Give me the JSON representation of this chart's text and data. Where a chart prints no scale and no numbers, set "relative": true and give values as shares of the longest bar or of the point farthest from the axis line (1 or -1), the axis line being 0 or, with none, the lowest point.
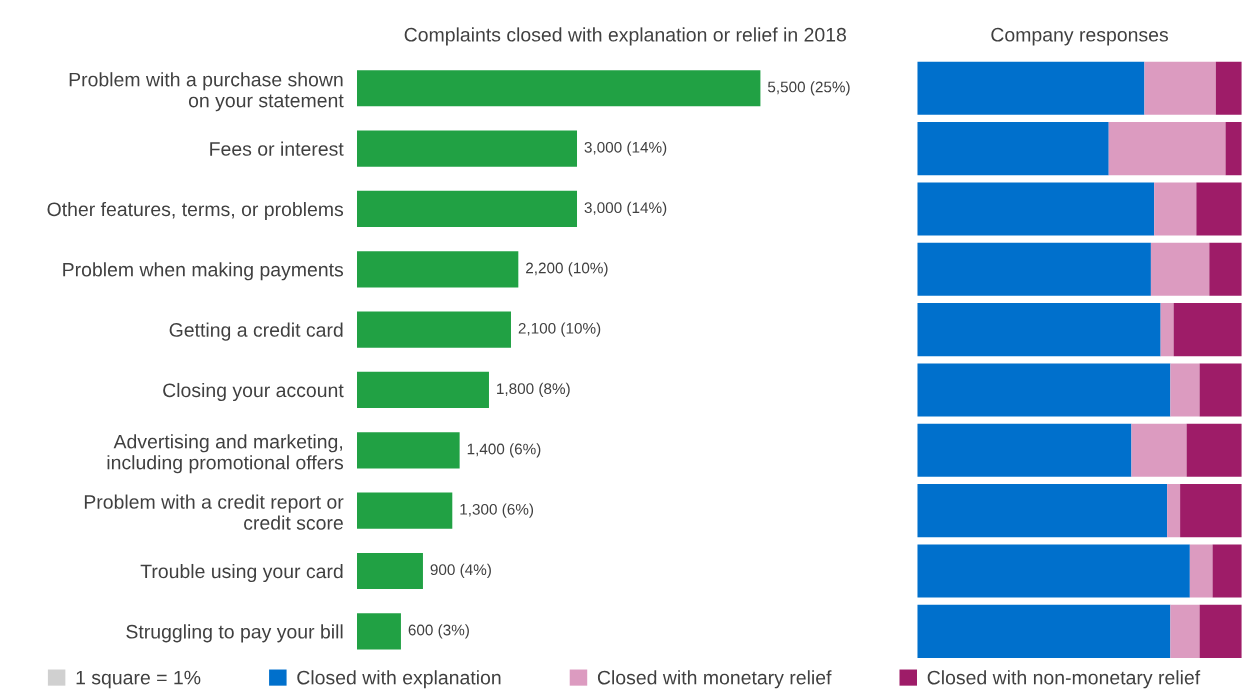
{
  "chart_data": [
    {
      "type": "bar",
      "orientation": "horizontal",
      "title": "Complaints closed with explanation or relief in 2018",
      "categories": [
        "Problem with a purchase shown\non your statement",
        "Fees or interest",
        "Other features, terms, or problems",
        "Problem when making payments",
        "Getting a credit card",
        "Closing your account",
        "Advertising and marketing,\nincluding promotional offers",
        "Problem with a credit report or\ncredit score",
        "Trouble using your card",
        "Struggling to pay your bill"
      ],
      "values": [
        5500,
        3000,
        3000,
        2200,
        2100,
        1800,
        1400,
        1300,
        900,
        600
      ],
      "color": "#21a144",
      "value_labels": [
        "5,500 (25%)",
        "3,000 (14%)",
        "3,000 (14%)",
        "2,200 (10%)",
        "2,100 (10%)",
        "1,800 (8%)",
        "1,400 (6%)",
        "1,300 (6%)",
        "900 (4%)",
        "600 (3%)"
      ]
    },
    {
      "type": "bar",
      "orientation": "horizontal",
      "stacked": true,
      "relative": true,
      "title": "Company responses",
      "categories": [
        null,
        null,
        null,
        null,
        null,
        null,
        null,
        null,
        null,
        null
      ],
      "legend": "bottom",
      "annotations": [
        "1 square = 1%"
      ],
      "series": [
        {
          "name": "Closed with explanation",
          "color": "#0070cc",
          "values": [
            0.7,
            0.59,
            0.73,
            0.72,
            0.75,
            0.78,
            0.66,
            0.77,
            0.84,
            0.78
          ]
        },
        {
          "name": "Closed with monetary relief",
          "color": "#dc9bc0",
          "values": [
            0.22,
            0.36,
            0.13,
            0.18,
            0.04,
            0.09,
            0.17,
            0.04,
            0.07,
            0.09
          ]
        },
        {
          "name": "Closed with non-monetary relief",
          "color": "#9e1c68",
          "values": [
            0.08,
            0.05,
            0.14,
            0.1,
            0.21,
            0.13,
            0.17,
            0.19,
            0.09,
            0.13
          ]
        }
      ]
    }
  ]
}
